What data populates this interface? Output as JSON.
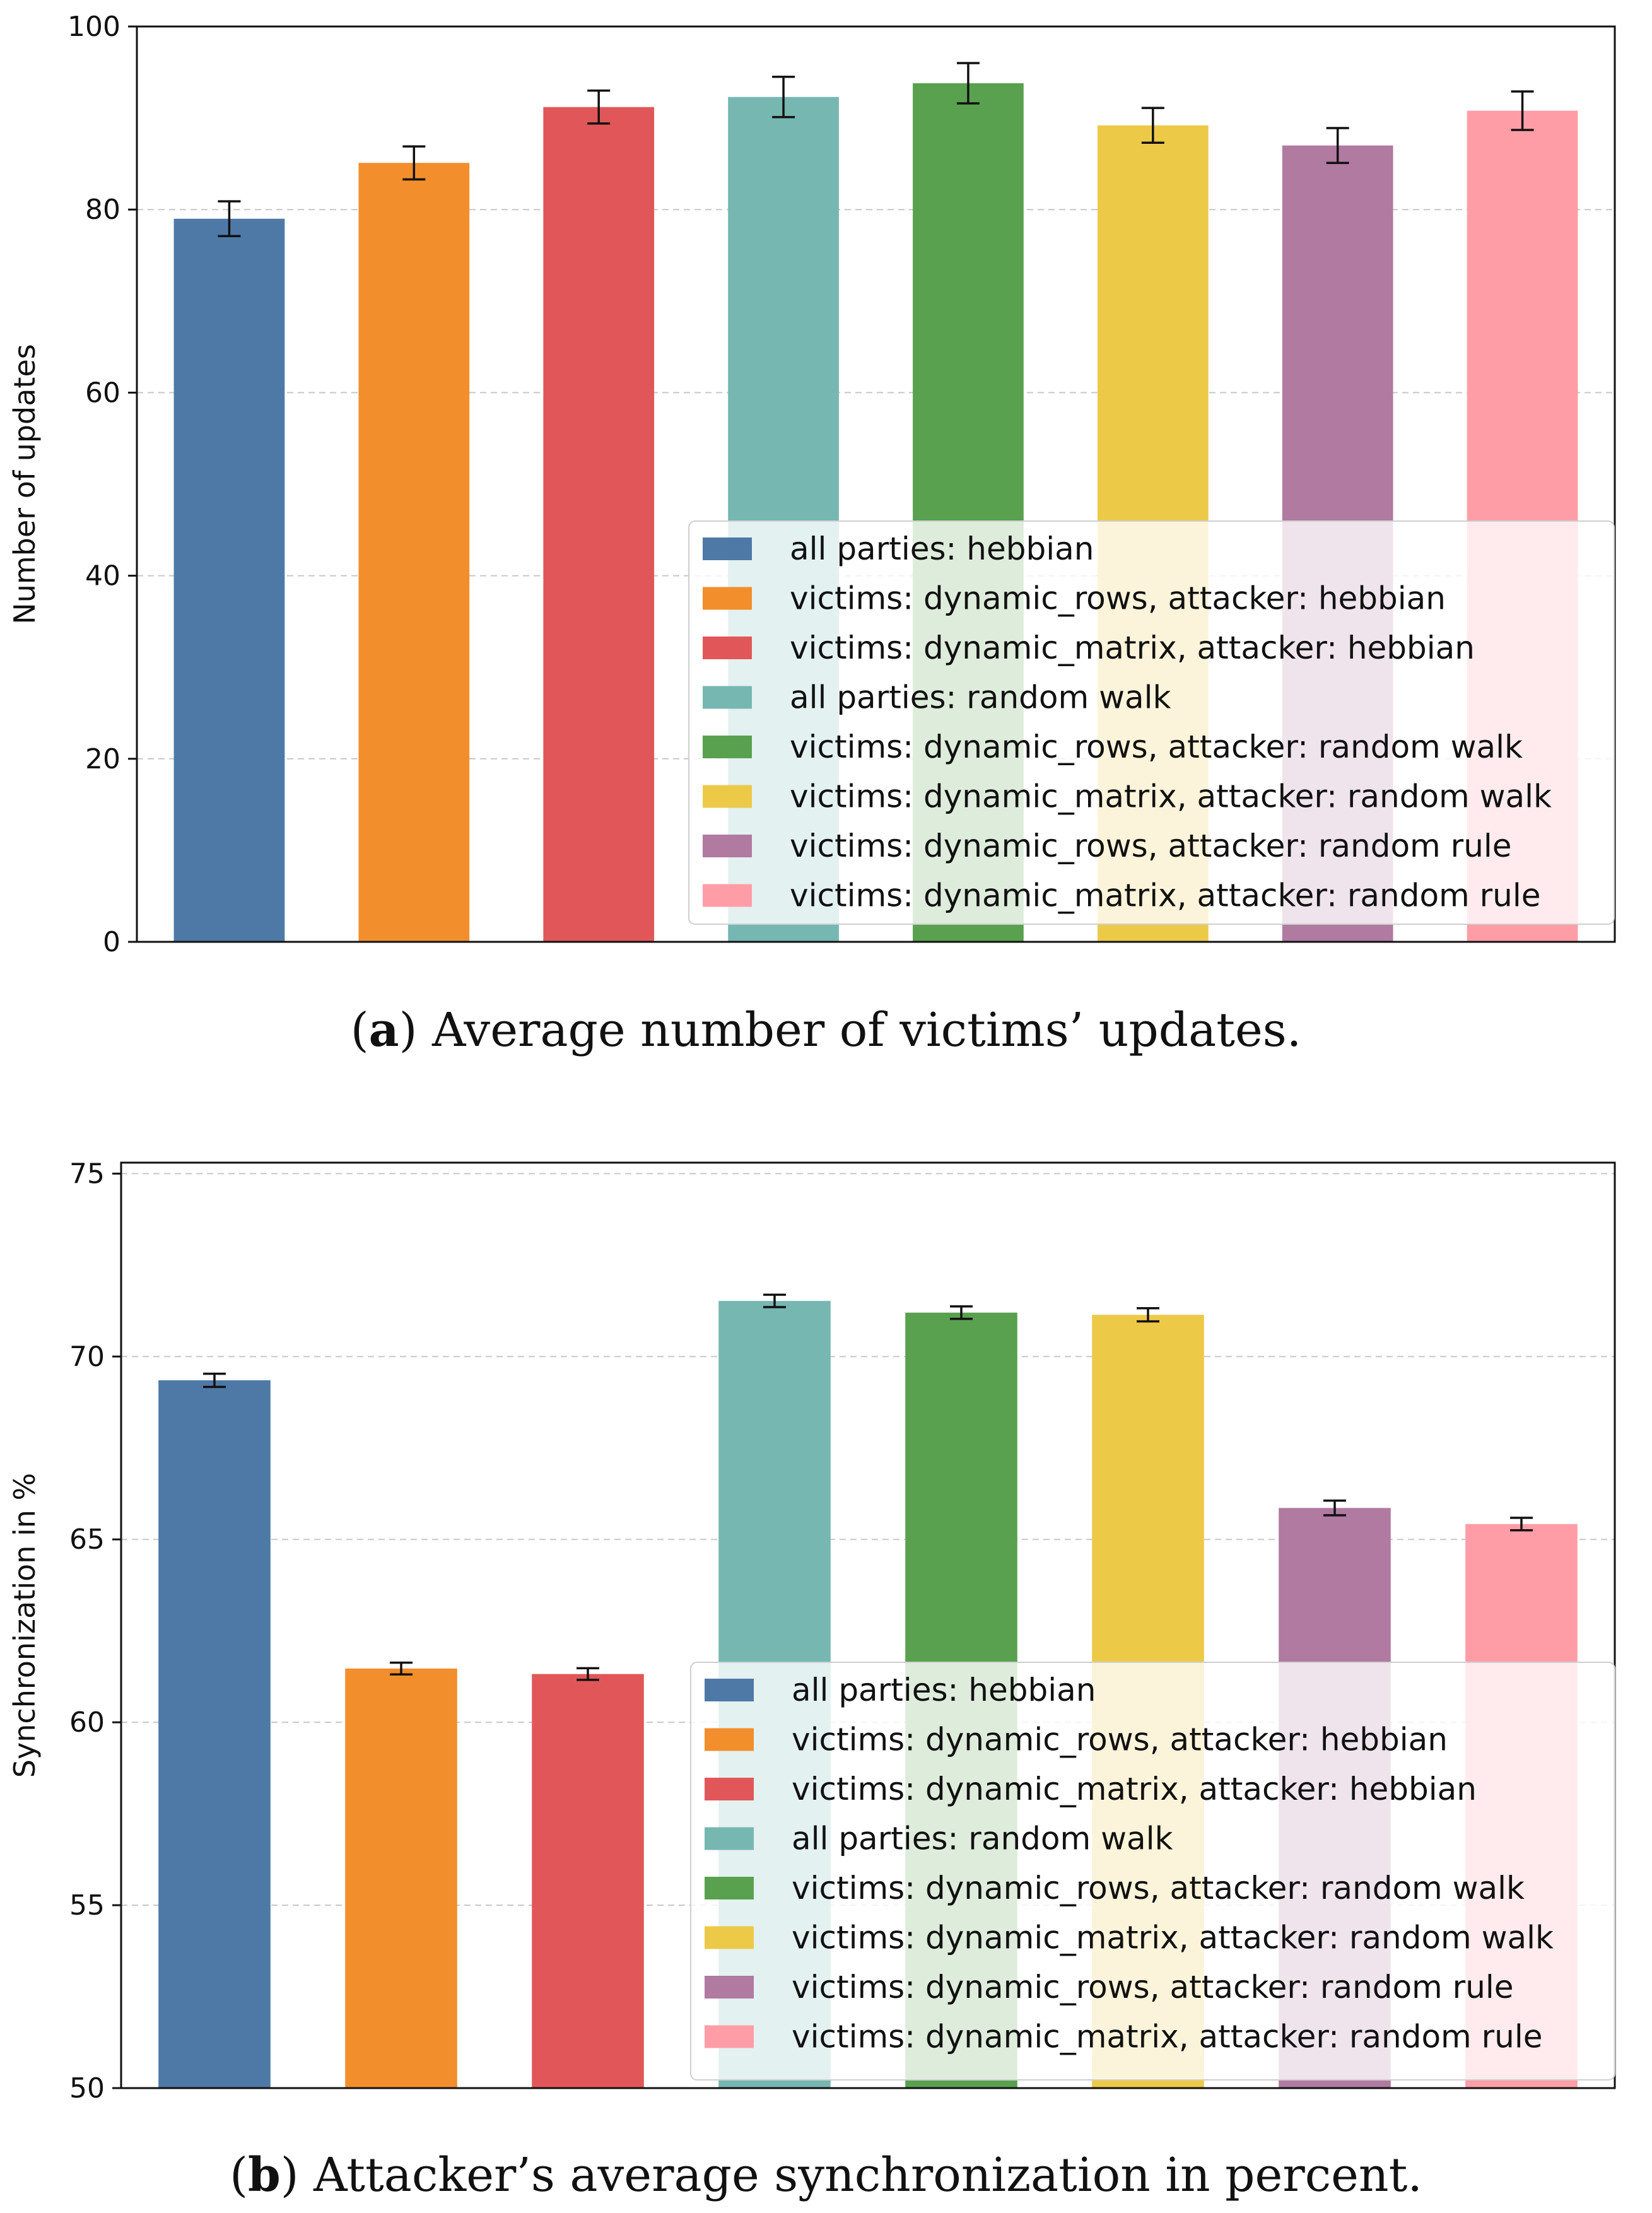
{
  "chart_data": [
    {
      "type": "bar",
      "caption_label": "a",
      "caption_text": "Average number of victims’ updates.",
      "ylabel": "Number of updates",
      "xlabel": "",
      "ylim": [
        0,
        100
      ],
      "yticks": [
        0,
        20,
        40,
        60,
        80,
        100
      ],
      "grid": true,
      "legend_position": "lower-right",
      "categories": [
        "all parties: hebbian",
        "victims: dynamic_rows, attacker: hebbian",
        "victims: dynamic_matrix, attacker: hebbian",
        "all parties: random walk",
        "victims: dynamic_rows, attacker: random walk",
        "victims: dynamic_matrix, attacker: random walk",
        "victims: dynamic_rows, attacker: random rule",
        "victims: dynamic_matrix, attacker: random rule"
      ],
      "colors": [
        "#4e79a7",
        "#f28e2b",
        "#e15759",
        "#76b7b2",
        "#59a14f",
        "#edc948",
        "#b07aa1",
        "#ff9da7"
      ],
      "values": [
        79.0,
        85.1,
        91.2,
        92.3,
        93.8,
        89.2,
        87.0,
        90.8
      ],
      "errors": [
        1.9,
        1.8,
        1.8,
        2.2,
        2.2,
        1.9,
        1.9,
        2.1
      ]
    },
    {
      "type": "bar",
      "caption_label": "b",
      "caption_text": "Attacker’s average synchronization in percent.",
      "ylabel": "Synchronization in %",
      "xlabel": "",
      "ylim": [
        50,
        75.3
      ],
      "yticks": [
        50,
        55,
        60,
        65,
        70,
        75
      ],
      "grid": true,
      "legend_position": "lower-right",
      "categories": [
        "all parties: hebbian",
        "victims: dynamic_rows, attacker: hebbian",
        "victims: dynamic_matrix, attacker: hebbian",
        "all parties: random walk",
        "victims: dynamic_rows, attacker: random walk",
        "victims: dynamic_matrix, attacker: random walk",
        "victims: dynamic_rows, attacker: random rule",
        "victims: dynamic_matrix, attacker: random rule"
      ],
      "colors": [
        "#4e79a7",
        "#f28e2b",
        "#e15759",
        "#76b7b2",
        "#59a14f",
        "#edc948",
        "#b07aa1",
        "#ff9da7"
      ],
      "values": [
        69.35,
        61.47,
        61.32,
        71.52,
        71.2,
        71.14,
        65.86,
        65.42
      ],
      "errors": [
        0.18,
        0.16,
        0.16,
        0.17,
        0.17,
        0.18,
        0.2,
        0.17
      ]
    }
  ]
}
